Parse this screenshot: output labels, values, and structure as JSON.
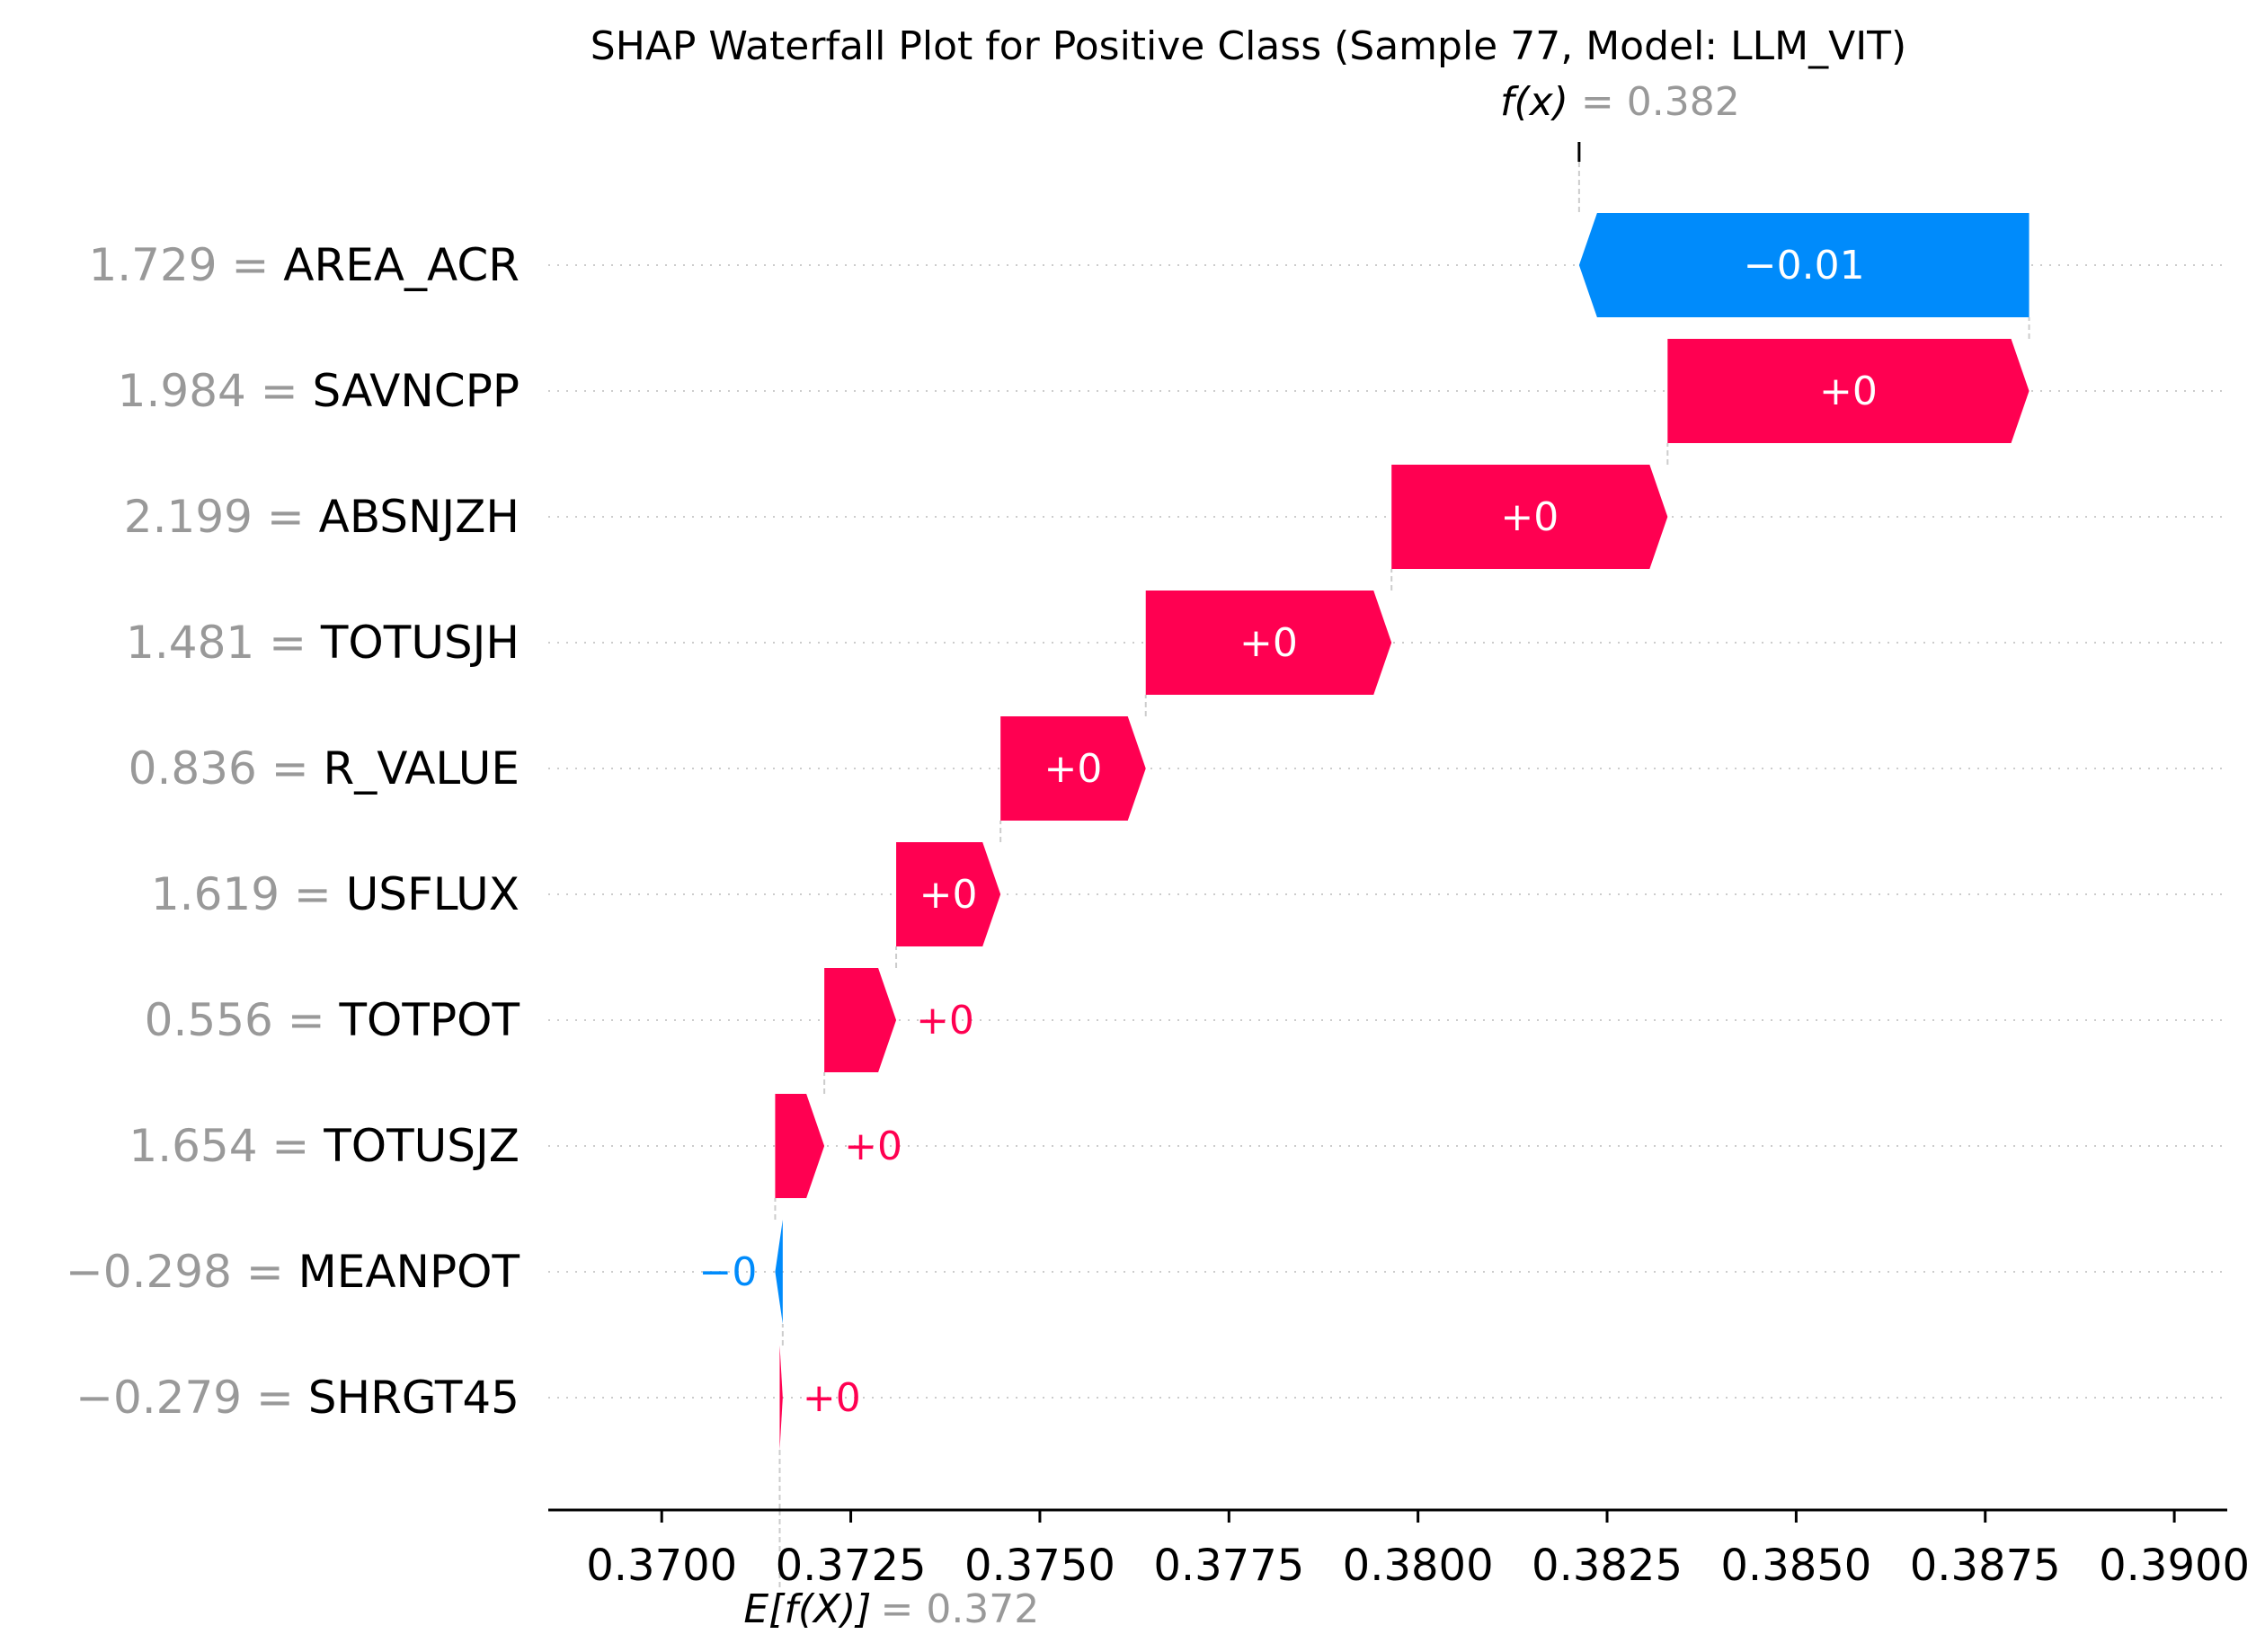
{
  "chart_data": {
    "type": "waterfall",
    "title": "SHAP Waterfall Plot for Positive Class (Sample 77, Model: LLM_VIT)",
    "fx_label": "f(x)",
    "fx_value": "= 0.382",
    "ex_label": "E[f(X)]",
    "ex_value": "= 0.372",
    "xlim": [
      0.3685,
      0.3907
    ],
    "xticks": [
      "0.3700",
      "0.3725",
      "0.3750",
      "0.3775",
      "0.3800",
      "0.3825",
      "0.3850",
      "0.3875",
      "0.3900"
    ],
    "base_value": 0.37156,
    "fx_position": 0.38213,
    "features": [
      {
        "value": "1.729",
        "name": "AREA_ACR",
        "start": 0.38808,
        "end": 0.38213,
        "label": "−0.01",
        "sign": "neg"
      },
      {
        "value": "1.984",
        "name": "SAVNCPP",
        "start": 0.3833,
        "end": 0.38808,
        "label": "+0",
        "sign": "pos"
      },
      {
        "value": "2.199",
        "name": "ABSNJZH",
        "start": 0.37965,
        "end": 0.3833,
        "label": "+0",
        "sign": "pos"
      },
      {
        "value": "1.481",
        "name": "TOTUSJH",
        "start": 0.3764,
        "end": 0.37965,
        "label": "+0",
        "sign": "pos"
      },
      {
        "value": "0.836",
        "name": "R_VALUE",
        "start": 0.37448,
        "end": 0.3764,
        "label": "+0",
        "sign": "pos"
      },
      {
        "value": "1.619",
        "name": "USFLUX",
        "start": 0.3731,
        "end": 0.37448,
        "label": "+0",
        "sign": "pos"
      },
      {
        "value": "0.556",
        "name": "TOTPOT",
        "start": 0.37215,
        "end": 0.3731,
        "label": "+0",
        "sign": "pos"
      },
      {
        "value": "1.654",
        "name": "TOTUSJZ",
        "start": 0.3715,
        "end": 0.37215,
        "label": "+0",
        "sign": "pos"
      },
      {
        "value": "−0.298",
        "name": "MEANPOT",
        "start": 0.3716,
        "end": 0.3715,
        "label": "−0",
        "sign": "neg"
      },
      {
        "value": "−0.279",
        "name": "SHRGT45",
        "start": 0.37156,
        "end": 0.3716,
        "label": "+0",
        "sign": "pos"
      }
    ]
  },
  "colors": {
    "positive": "#ff0051",
    "negative": "#008bfb",
    "muted_text": "#999999",
    "text": "#000000",
    "grid": "#cccccc"
  }
}
